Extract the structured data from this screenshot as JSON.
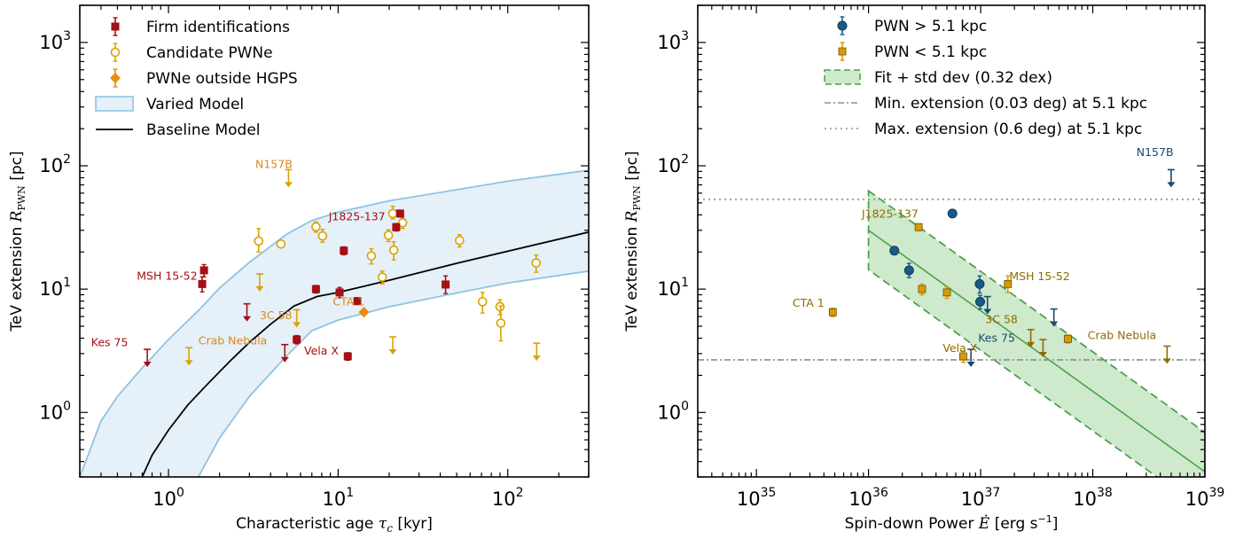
{
  "chart_data": [
    {
      "type": "scatter",
      "xlabel": "Characteristic age",
      "xlabel_symbol": "τ",
      "xlabel_sub": "c",
      "xlabel_unit": "[kyr]",
      "ylabel": "TeV extension",
      "ylabel_symbol": "R",
      "ylabel_sub": "PWN",
      "ylabel_unit": "[pc]",
      "xscale": "log",
      "yscale": "log",
      "xlim": [
        0.3,
        300
      ],
      "ylim": [
        0.3,
        2000
      ],
      "xticks": [
        {
          "base": "10",
          "exp": "0"
        },
        {
          "base": "10",
          "exp": "1"
        },
        {
          "base": "10",
          "exp": "2"
        }
      ],
      "yticks": [
        {
          "base": "10",
          "exp": "0"
        },
        {
          "base": "10",
          "exp": "1"
        },
        {
          "base": "10",
          "exp": "2"
        },
        {
          "base": "10",
          "exp": "3"
        }
      ],
      "colors": {
        "firm": "#a50f15",
        "candidate": "#d9a300",
        "outside": "#f08a0c",
        "band_fill": "#e5f0f9",
        "band_edge": "#8fc3e2",
        "baseline": "#000000"
      },
      "legend": {
        "position": "upper-left",
        "entries": [
          {
            "label": "Firm identifications",
            "kind": "firm"
          },
          {
            "label": "Candidate PWNe",
            "kind": "candidate"
          },
          {
            "label": "PWNe outside HGPS",
            "kind": "outside"
          },
          {
            "label": "Varied Model",
            "kind": "band"
          },
          {
            "label": "Baseline Model",
            "kind": "line"
          }
        ]
      },
      "baseline_model": {
        "x": [
          0.7,
          0.8,
          1.0,
          1.3,
          1.7,
          2.3,
          3.0,
          4.0,
          5.5,
          7.5,
          10,
          20,
          50,
          100,
          300
        ],
        "y": [
          0.3,
          0.45,
          0.72,
          1.15,
          1.7,
          2.6,
          3.7,
          5.2,
          7.3,
          8.7,
          9.4,
          11.8,
          16.2,
          20.3,
          29
        ]
      },
      "varied_model": {
        "x": [
          0.3,
          0.4,
          0.5,
          0.7,
          1.0,
          1.5,
          2.0,
          3.0,
          5.0,
          7.0,
          10,
          20,
          50,
          100,
          300
        ],
        "upper": [
          0.3,
          0.85,
          1.35,
          2.3,
          3.9,
          6.7,
          10.2,
          16.5,
          28,
          36,
          42,
          52,
          64,
          75,
          92
        ],
        "lower": [
          null,
          null,
          null,
          null,
          null,
          0.3,
          0.62,
          1.35,
          2.9,
          4.6,
          5.6,
          7.2,
          9.3,
          11.2,
          14
        ]
      },
      "firm_points": [
        {
          "x": 1.62,
          "y": 14.2,
          "yerr": [
            1.6,
            1.6
          ]
        },
        {
          "x": 1.58,
          "y": 11.0,
          "yerr": [
            1.5,
            1.6
          ]
        },
        {
          "x": 7.4,
          "y": 10.0,
          "yerr": [
            0.7,
            0.7
          ]
        },
        {
          "x": 10.8,
          "y": 20.5,
          "yerr": [
            1.5,
            1.5
          ]
        },
        {
          "x": 10.2,
          "y": 9.4,
          "yerr": [
            0.9,
            0.9
          ]
        },
        {
          "x": 13.0,
          "y": 8.0,
          "yerr": [
            0.5,
            0.5
          ]
        },
        {
          "x": 11.4,
          "y": 2.85,
          "yerr": [
            0.2,
            0.2
          ]
        },
        {
          "x": 5.7,
          "y": 3.9,
          "yerr": [
            0.3,
            0.3
          ]
        },
        {
          "x": 22.0,
          "y": 31.8,
          "yerr": [
            2.2,
            2.2
          ]
        },
        {
          "x": 23.2,
          "y": 41.0,
          "yerr": [
            2.6,
            2.6
          ]
        },
        {
          "x": 43.0,
          "y": 10.9,
          "yerr": [
            1.7,
            1.9
          ]
        }
      ],
      "firm_limits": [
        {
          "x": 0.75,
          "y": 3.25
        },
        {
          "x": 2.9,
          "y": 7.6
        },
        {
          "x": 4.85,
          "y": 3.55
        }
      ],
      "candidate_points": [
        {
          "x": 3.4,
          "y": 24.5,
          "yerr": [
            4.5,
            6.5
          ]
        },
        {
          "x": 4.6,
          "y": 23.2,
          "yerr": [
            0.8,
            0.8
          ]
        },
        {
          "x": 7.4,
          "y": 32.0,
          "yerr": [
            3.0,
            3.0
          ]
        },
        {
          "x": 8.1,
          "y": 27.0,
          "yerr": [
            3.0,
            3.5
          ]
        },
        {
          "x": 15.7,
          "y": 18.6,
          "yerr": [
            2.6,
            2.6
          ]
        },
        {
          "x": 18.2,
          "y": 12.5,
          "yerr": [
            1.5,
            1.5
          ]
        },
        {
          "x": 19.8,
          "y": 27.3,
          "yerr": [
            3.0,
            3.0
          ]
        },
        {
          "x": 21.0,
          "y": 41.0,
          "yerr": [
            4.0,
            6.0
          ]
        },
        {
          "x": 21.3,
          "y": 20.7,
          "yerr": [
            3.5,
            3.5
          ]
        },
        {
          "x": 24.0,
          "y": 34.5,
          "yerr": [
            3.5,
            3.5
          ]
        },
        {
          "x": 52.0,
          "y": 24.8,
          "yerr": [
            2.8,
            2.8
          ]
        },
        {
          "x": 71.0,
          "y": 7.9,
          "yerr": [
            1.5,
            1.5
          ]
        },
        {
          "x": 90.0,
          "y": 7.2,
          "yerr": [
            1.0,
            1.0
          ]
        },
        {
          "x": 91.0,
          "y": 5.3,
          "yerr": [
            1.5,
            2.0
          ]
        },
        {
          "x": 147.0,
          "y": 16.3,
          "yerr": [
            2.6,
            2.6
          ]
        }
      ],
      "candidate_limits": [
        {
          "x": 1.32,
          "y": 3.35
        },
        {
          "x": 3.45,
          "y": 13.3
        },
        {
          "x": 5.1,
          "y": 93.0
        },
        {
          "x": 5.7,
          "y": 6.8
        },
        {
          "x": 21.0,
          "y": 4.1
        },
        {
          "x": 148.0,
          "y": 3.65
        }
      ],
      "outside_points": [
        {
          "x": 14.2,
          "y": 6.5
        }
      ],
      "labels": [
        {
          "text": "N157B",
          "x": 3.25,
          "y": 96,
          "color": "#d98a1a"
        },
        {
          "text": "J1825-137",
          "x": 8.8,
          "y": 36,
          "color": "#a50f15"
        },
        {
          "text": "MSH 15-52",
          "x": 0.65,
          "y": 11.9,
          "color": "#a50f15"
        },
        {
          "text": "3C 58",
          "x": 3.45,
          "y": 5.7,
          "color": "#d98a1a"
        },
        {
          "text": "CTA 1",
          "x": 9.3,
          "y": 7.4,
          "color": "#d98a1a"
        },
        {
          "text": "Kes 75",
          "x": 0.35,
          "y": 3.45,
          "color": "#a50f15"
        },
        {
          "text": "Crab Nebula",
          "x": 1.5,
          "y": 3.55,
          "color": "#d98a1a"
        },
        {
          "text": "Vela X",
          "x": 6.3,
          "y": 2.95,
          "color": "#a50f15"
        }
      ]
    },
    {
      "type": "scatter",
      "xlabel": "Spin-down Power",
      "xlabel_symbol": "Ė",
      "xlabel_unit": "[erg s",
      "xlabel_unit_exp": "−1",
      "xlabel_unit_end": "]",
      "ylabel": "TeV extension",
      "ylabel_symbol": "R",
      "ylabel_sub": "PWN",
      "ylabel_unit": "[pc]",
      "xscale": "log",
      "yscale": "log",
      "xlim": [
        3e+34,
        1e+39
      ],
      "ylim": [
        0.3,
        2000
      ],
      "xticks": [
        {
          "base": "10",
          "exp": "35"
        },
        {
          "base": "10",
          "exp": "36"
        },
        {
          "base": "10",
          "exp": "37"
        },
        {
          "base": "10",
          "exp": "38"
        },
        {
          "base": "10",
          "exp": "39"
        }
      ],
      "yticks": [
        {
          "base": "10",
          "exp": "0"
        },
        {
          "base": "10",
          "exp": "1"
        },
        {
          "base": "10",
          "exp": "2"
        },
        {
          "base": "10",
          "exp": "3"
        }
      ],
      "colors": {
        "far": "#1b5a86",
        "near": "#d99a0a",
        "far_label": "#1b4a6e",
        "near_label": "#8e6c00",
        "fit": "#4aa34a",
        "fit_fill": "#cfe9cc"
      },
      "legend": {
        "position": "upper-center",
        "entries": [
          {
            "label": "PWN > 5.1 kpc",
            "kind": "far"
          },
          {
            "label": "PWN < 5.1 kpc",
            "kind": "near"
          },
          {
            "label": "Fit + std dev (0.32 dex)",
            "kind": "fit"
          },
          {
            "label": "Min. extension (0.03 deg) at 5.1 kpc",
            "kind": "min"
          },
          {
            "label": "Max. extension (0.6 deg) at 5.1 kpc",
            "kind": "max"
          }
        ]
      },
      "fit": {
        "x": [
          1e+36,
          1e+39
        ],
        "y": [
          30,
          0.33
        ],
        "std_dex": 0.32
      },
      "min_extension": 2.67,
      "max_extension": 53.4,
      "far_points": [
        {
          "x": 1.7e+36,
          "y": 20.5,
          "yerr": [
            1.5,
            1.5
          ]
        },
        {
          "x": 2.3e+36,
          "y": 14.2,
          "yerr": [
            1.8,
            2.0
          ]
        },
        {
          "x": 5.6e+36,
          "y": 41.0,
          "yerr": [
            2.5,
            2.5
          ]
        },
        {
          "x": 9.8e+36,
          "y": 11.0,
          "yerr": [
            1.7,
            1.8
          ]
        },
        {
          "x": 9.9e+36,
          "y": 7.9,
          "yerr": [
            1.0,
            1.0
          ]
        }
      ],
      "far_limits": [
        {
          "x": 1.15e+37,
          "y": 8.7
        },
        {
          "x": 4.5e+37,
          "y": 6.9
        },
        {
          "x": 8.2e+36,
          "y": 3.25
        },
        {
          "x": 5e+38,
          "y": 93.0
        }
      ],
      "near_points": [
        {
          "x": 4.8e+35,
          "y": 6.5,
          "yerr": [
            0.5,
            0.5
          ]
        },
        {
          "x": 2.8e+36,
          "y": 31.8,
          "yerr": [
            2.0,
            2.0
          ]
        },
        {
          "x": 3e+36,
          "y": 10.0,
          "yerr": [
            1.0,
            1.0
          ]
        },
        {
          "x": 5e+36,
          "y": 9.4,
          "yerr": [
            1.0,
            1.0
          ]
        },
        {
          "x": 7e+36,
          "y": 2.85,
          "yerr": [
            0.3,
            0.3
          ]
        },
        {
          "x": 1.75e+37,
          "y": 11.0,
          "yerr": [
            1.6,
            1.8
          ]
        },
        {
          "x": 6e+37,
          "y": 3.95,
          "yerr": [
            0.3,
            0.3
          ]
        }
      ],
      "near_limits": [
        {
          "x": 2.8e+37,
          "y": 4.7
        },
        {
          "x": 3.6e+37,
          "y": 3.9
        },
        {
          "x": 4.6e+38,
          "y": 3.45
        }
      ],
      "labels": [
        {
          "text": "N157B",
          "x": 2.45e+38,
          "y": 120,
          "color": "#1b4a6e"
        },
        {
          "text": "J1825-137",
          "x": 8.7e+35,
          "y": 38,
          "color": "#8e6c00"
        },
        {
          "text": "MSH 15-52",
          "x": 1.8e+37,
          "y": 11.8,
          "color": "#8e6c00"
        },
        {
          "text": "CTA 1",
          "x": 2.1e+35,
          "y": 7.2,
          "color": "#8e6c00"
        },
        {
          "text": "3C 58",
          "x": 1.1e+37,
          "y": 5.3,
          "color": "#8e6c00"
        },
        {
          "text": "Vela X",
          "x": 4.6e+36,
          "y": 3.1,
          "color": "#8e6c00"
        },
        {
          "text": "Kes 75",
          "x": 9.5e+36,
          "y": 3.75,
          "color": "#1b4a6e"
        },
        {
          "text": "Crab Nebula",
          "x": 9e+37,
          "y": 3.95,
          "color": "#8e6c00"
        }
      ]
    }
  ]
}
